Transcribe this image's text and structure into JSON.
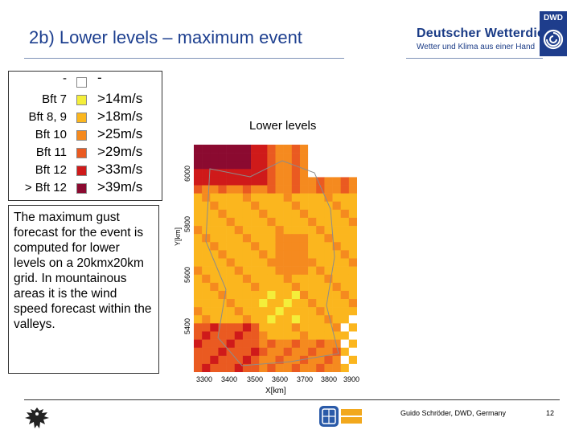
{
  "header": {
    "title": "2b) Lower levels – maximum event",
    "brand_name": "Deutscher Wetterdienst",
    "brand_sub": "Wetter und Klima aus einer Hand",
    "dwd_badge": "DWD"
  },
  "legend": {
    "rows": [
      {
        "bft": "-",
        "speed": "-",
        "color": "#ffffff"
      },
      {
        "bft": "Bft 7",
        "speed": ">14m/s",
        "color": "#f4ee3a"
      },
      {
        "bft": "Bft 8, 9",
        "speed": ">18m/s",
        "color": "#fbb61e"
      },
      {
        "bft": "Bft 10",
        "speed": ">25m/s",
        "color": "#f58a1f"
      },
      {
        "bft": "Bft 11",
        "speed": ">29m/s",
        "color": "#ea5a21"
      },
      {
        "bft": "Bft 12",
        "speed": ">33m/s",
        "color": "#cf1a1a"
      },
      {
        "bft": "> Bft 12",
        "speed": ">39m/s",
        "color": "#8b0a30"
      }
    ]
  },
  "description": "The maximum gust forecast for the event is computed for lower levels on a 20kmx20km grid. In mountainous areas it is the wind speed forecast within the valleys.",
  "map": {
    "title": "Lower levels",
    "ylabel": "Y[km]",
    "xlabel": "X[km]",
    "yticks": [
      "6000",
      "5800",
      "5600",
      "5400"
    ],
    "xticks": [
      "3300",
      "3400",
      "3500",
      "3600",
      "3700",
      "3800",
      "3900"
    ]
  },
  "footer": {
    "credit": "Guido Schröder, DWD, Germany",
    "page": "12"
  },
  "icons": {
    "federal_eagle": "eagle-icon",
    "auto_logo": "auto-warn-logo-icon",
    "dwd_spiral": "spiral-icon"
  }
}
